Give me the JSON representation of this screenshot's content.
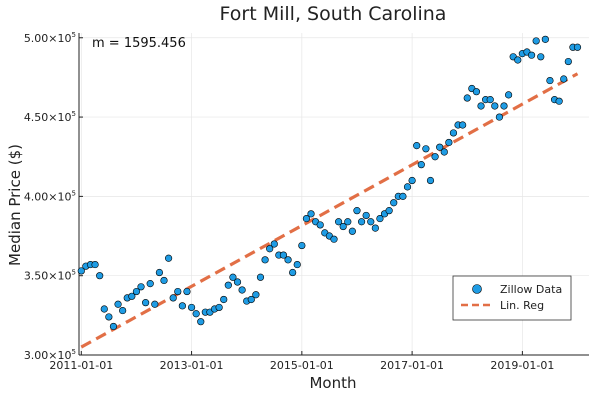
{
  "chart_data": {
    "type": "scatter",
    "title": "Fort Mill, South Carolina",
    "xlabel": "Month",
    "ylabel": "Median Price ($)",
    "annotation": "m = 1595.456",
    "x_ticks": [
      {
        "label": "2011-01-01",
        "value": 0
      },
      {
        "label": "2013-01-01",
        "value": 24
      },
      {
        "label": "2015-01-01",
        "value": 48
      },
      {
        "label": "2017-01-01",
        "value": 72
      },
      {
        "label": "2019-01-01",
        "value": 96
      }
    ],
    "y_ticks": [
      {
        "mantissa": "3.00×10",
        "exp": "5",
        "value": 300000
      },
      {
        "mantissa": "3.50×10",
        "exp": "5",
        "value": 350000
      },
      {
        "mantissa": "4.00×10",
        "exp": "5",
        "value": 400000
      },
      {
        "mantissa": "4.50×10",
        "exp": "5",
        "value": 450000
      },
      {
        "mantissa": "5.00×10",
        "exp": "5",
        "value": 500000
      }
    ],
    "xlim": [
      -0.5,
      110.5
    ],
    "ylim": [
      300000,
      503000
    ],
    "grid": true,
    "legend": {
      "position": "bottom-right",
      "scatter_label": "Zillow Data",
      "line_label": "Lin. Reg"
    },
    "colors": {
      "scatter": "#1f9ce4",
      "line": "#e26f46"
    },
    "series": [
      {
        "name": "Zillow Data",
        "kind": "scatter",
        "x": [
          0,
          1,
          2,
          3,
          4,
          5,
          6,
          7,
          8,
          9,
          10,
          11,
          12,
          13,
          14,
          15,
          16,
          17,
          18,
          19,
          20,
          21,
          22,
          23,
          24,
          25,
          26,
          27,
          28,
          29,
          30,
          31,
          32,
          33,
          34,
          35,
          36,
          37,
          38,
          39,
          40,
          41,
          42,
          43,
          44,
          45,
          46,
          47,
          48,
          49,
          50,
          51,
          52,
          53,
          54,
          55,
          56,
          57,
          58,
          59,
          60,
          61,
          62,
          63,
          64,
          65,
          66,
          67,
          68,
          69,
          70,
          71,
          72,
          73,
          74,
          75,
          76,
          77,
          78,
          79,
          80,
          81,
          82,
          83,
          84,
          85,
          86,
          87,
          88,
          89,
          90,
          91,
          92,
          93,
          94,
          95,
          96,
          97,
          98,
          99,
          100,
          101,
          102,
          103,
          104,
          105,
          106,
          107,
          108
        ],
        "y": [
          353000,
          356000,
          357000,
          357000,
          350000,
          329000,
          324000,
          318000,
          332000,
          328000,
          336000,
          337000,
          340000,
          343000,
          333000,
          345000,
          332000,
          352000,
          347000,
          361000,
          336000,
          340000,
          331000,
          340000,
          330000,
          326000,
          321000,
          327000,
          327000,
          329000,
          330000,
          335000,
          344000,
          349000,
          346000,
          341000,
          334000,
          335000,
          338000,
          349000,
          360000,
          367000,
          370000,
          363000,
          363000,
          360000,
          352000,
          357000,
          369000,
          386000,
          389000,
          384000,
          382000,
          377000,
          375000,
          373000,
          384000,
          381000,
          384000,
          378000,
          391000,
          384000,
          388000,
          384000,
          380000,
          386000,
          389000,
          391000,
          396000,
          400000,
          400000,
          406000,
          410000,
          432000,
          420000,
          430000,
          410000,
          425000,
          431000,
          428000,
          434000,
          440000,
          445000,
          445000,
          462000,
          468000,
          466000,
          457000,
          461000,
          461000,
          457000,
          450000,
          457000,
          464000,
          488000,
          486000,
          490000,
          491000,
          489000,
          498000,
          488000,
          499000,
          473000,
          461000,
          460000,
          474000,
          485000,
          494000,
          494000
        ]
      },
      {
        "name": "Lin. Reg",
        "kind": "line",
        "slope": 1595.456,
        "x": [
          0,
          108
        ],
        "y": [
          305000,
          477309
        ]
      }
    ]
  }
}
